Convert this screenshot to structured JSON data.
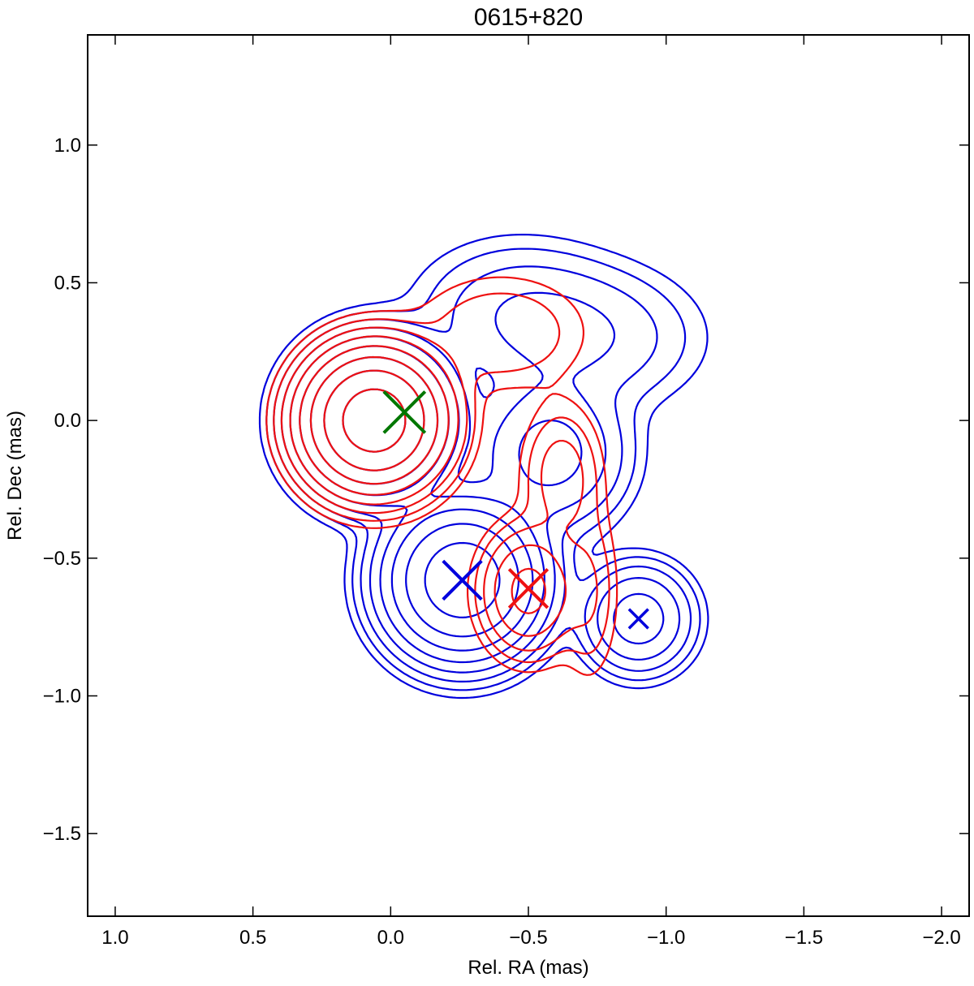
{
  "chart_data": {
    "type": "contour",
    "title": "0615+820",
    "xlabel": "Rel. RA (mas)",
    "ylabel": "Rel. Dec (mas)",
    "xlim": [
      1.1,
      -2.1
    ],
    "ylim": [
      -1.8,
      1.4
    ],
    "x_ticks": [
      1.0,
      0.5,
      0.0,
      -0.5,
      -1.0,
      -1.5,
      -2.0
    ],
    "x_tick_labels": [
      "1.0",
      "0.5",
      "0.0",
      "−0.5",
      "−1.0",
      "−1.5",
      "−2.0"
    ],
    "y_ticks": [
      1.0,
      0.5,
      0.0,
      -0.5,
      -1.0,
      -1.5
    ],
    "y_tick_labels": [
      "1.0",
      "0.5",
      "0.0",
      "−0.5",
      "−1.0",
      "−1.5"
    ],
    "series": [
      {
        "color": "#0000dd",
        "components": [
          {
            "x": 0.06,
            "y": 0.0,
            "sx": 0.12,
            "sy": 0.12,
            "amp": 1.0
          },
          {
            "x": -0.26,
            "y": -0.58,
            "sx": 0.13,
            "sy": 0.13,
            "amp": 0.55
          },
          {
            "x": -0.9,
            "y": -0.72,
            "sx": 0.1,
            "sy": 0.1,
            "amp": 0.06
          },
          {
            "x": -0.58,
            "y": -0.12,
            "sx": 0.14,
            "sy": 0.14,
            "amp": 0.055
          },
          {
            "x": -0.7,
            "y": 0.3,
            "sx": 0.22,
            "sy": 0.14,
            "amp": 0.02
          },
          {
            "x": -0.45,
            "y": 0.4,
            "sx": 0.2,
            "sy": 0.14,
            "amp": 0.015
          }
        ],
        "levels": [
          0.0025,
          0.005,
          0.01,
          0.02,
          0.04,
          0.08,
          0.16,
          0.32,
          0.64
        ]
      },
      {
        "color": "#ee1111",
        "components": [
          {
            "x": 0.06,
            "y": 0.0,
            "sx": 0.12,
            "sy": 0.12,
            "amp": 1.0
          },
          {
            "x": -0.5,
            "y": -0.62,
            "sx": 0.09,
            "sy": 0.12,
            "amp": 0.1
          },
          {
            "x": -0.4,
            "y": 0.32,
            "sx": 0.18,
            "sy": 0.12,
            "amp": 0.02
          },
          {
            "x": -0.62,
            "y": -0.2,
            "sx": 0.08,
            "sy": 0.14,
            "amp": 0.03
          },
          {
            "x": -0.72,
            "y": -0.62,
            "sx": 0.06,
            "sy": 0.18,
            "amp": 0.02
          }
        ],
        "levels": [
          0.005,
          0.01,
          0.02,
          0.04,
          0.08,
          0.16,
          0.32,
          0.64
        ]
      }
    ],
    "markers": [
      {
        "x": -0.05,
        "y": 0.03,
        "color": "#007700",
        "size": 0.075
      },
      {
        "x": -0.26,
        "y": -0.58,
        "color": "#0000dd",
        "size": 0.07
      },
      {
        "x": -0.5,
        "y": -0.61,
        "color": "#ee1111",
        "size": 0.07
      },
      {
        "x": -0.9,
        "y": -0.72,
        "color": "#0000dd",
        "size": 0.035
      }
    ]
  }
}
